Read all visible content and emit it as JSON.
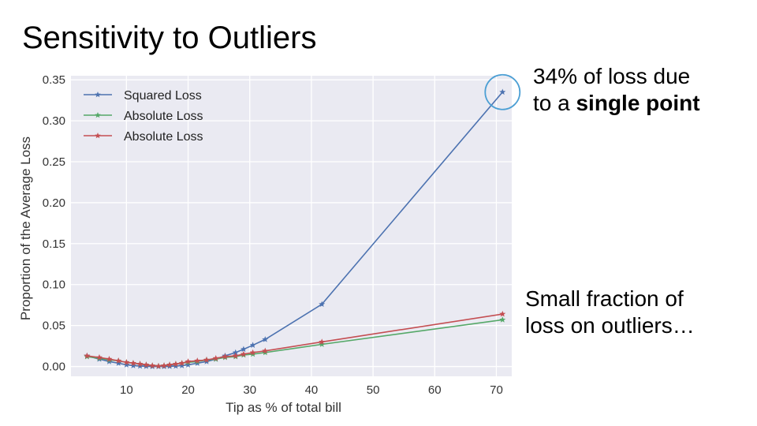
{
  "slide": {
    "title": "Sensitivity to Outliers",
    "annotation_top_line1": "34% of loss due",
    "annotation_top_line2_prefix": "to a ",
    "annotation_top_line2_bold": "single point",
    "annotation_bottom_line1": "Small fraction of",
    "annotation_bottom_line2": "loss on outliers…"
  },
  "chart_data": {
    "type": "line",
    "title": "",
    "xlabel": "Tip as % of total bill",
    "ylabel": "Proportion of the Average Loss",
    "xlim": [
      1,
      72.5
    ],
    "ylim": [
      -0.012,
      0.355
    ],
    "xticks": [
      10,
      20,
      30,
      40,
      50,
      60,
      70
    ],
    "yticks": [
      0.0,
      0.05,
      0.1,
      0.15,
      0.2,
      0.25,
      0.3,
      0.35
    ],
    "ytick_labels": [
      "0.00",
      "0.05",
      "0.10",
      "0.15",
      "0.20",
      "0.25",
      "0.30",
      "0.35"
    ],
    "grid": true,
    "legend_position": "top-left",
    "highlight": {
      "x": 71,
      "y": 0.335,
      "note": "circled point"
    },
    "colors": {
      "background": "#eaeaf2",
      "grid": "#ffffff",
      "highlight": "#4c9fd4"
    },
    "series": [
      {
        "name": "Squared Loss",
        "color": "#4c72b0",
        "marker": "star",
        "x": [
          3.6,
          5.6,
          7.2,
          8.7,
          10.0,
          11.1,
          12.2,
          13.2,
          14.2,
          15.2,
          16.1,
          17.0,
          18.0,
          19.0,
          20.0,
          21.5,
          23.0,
          24.5,
          26.0,
          27.7,
          29.0,
          30.5,
          32.5,
          41.7,
          71.0
        ],
        "y": [
          0.013,
          0.009,
          0.006,
          0.004,
          0.002,
          0.001,
          0.0005,
          0.0002,
          0.0,
          0.0,
          0.0,
          0.0002,
          0.0005,
          0.001,
          0.002,
          0.004,
          0.006,
          0.009,
          0.013,
          0.017,
          0.021,
          0.026,
          0.033,
          0.076,
          0.335
        ]
      },
      {
        "name": "Absolute Loss",
        "color": "#55a868",
        "marker": "star",
        "x": [
          3.6,
          5.6,
          7.2,
          8.7,
          10.0,
          11.1,
          12.2,
          13.2,
          14.2,
          15.2,
          16.1,
          17.0,
          18.0,
          19.0,
          20.0,
          21.5,
          23.0,
          24.5,
          26.0,
          27.7,
          29.0,
          30.5,
          32.5,
          41.7,
          71.0
        ],
        "y": [
          0.012,
          0.01,
          0.008,
          0.007,
          0.005,
          0.004,
          0.003,
          0.002,
          0.001,
          0.0005,
          0.001,
          0.002,
          0.003,
          0.004,
          0.005,
          0.006,
          0.008,
          0.009,
          0.011,
          0.012,
          0.014,
          0.015,
          0.017,
          0.027,
          0.057
        ]
      },
      {
        "name": "Absolute Loss",
        "color": "#c44e52",
        "marker": "star",
        "x": [
          3.6,
          5.6,
          7.2,
          8.7,
          10.0,
          11.1,
          12.2,
          13.2,
          14.2,
          15.2,
          16.1,
          17.0,
          18.0,
          19.0,
          20.0,
          21.5,
          23.0,
          24.5,
          26.0,
          27.7,
          29.0,
          30.5,
          32.5,
          41.7,
          71.0
        ],
        "y": [
          0.013,
          0.011,
          0.009,
          0.007,
          0.005,
          0.004,
          0.003,
          0.002,
          0.001,
          0.0005,
          0.001,
          0.002,
          0.003,
          0.004,
          0.006,
          0.007,
          0.008,
          0.01,
          0.012,
          0.013,
          0.015,
          0.017,
          0.019,
          0.03,
          0.064
        ]
      }
    ]
  }
}
